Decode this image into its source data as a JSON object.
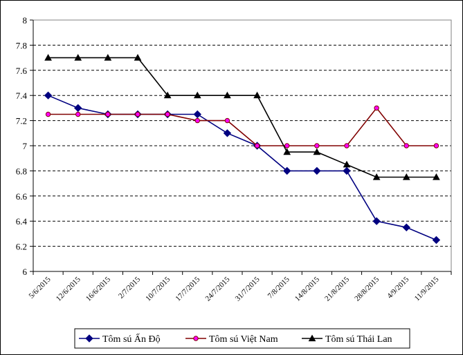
{
  "chart_data": {
    "type": "line",
    "title": "",
    "xlabel": "",
    "ylabel": "",
    "ylim": [
      6,
      8
    ],
    "yticks": [
      "6",
      "6.2",
      "6.4",
      "6.6",
      "6.8",
      "7",
      "7.2",
      "7.4",
      "7.6",
      "7.8",
      "8"
    ],
    "ytick_values": [
      6,
      6.2,
      6.4,
      6.6,
      6.8,
      7,
      7.2,
      7.4,
      7.6,
      7.8,
      8
    ],
    "grid": "horizontal-dashed",
    "legend_position": "bottom",
    "x": [
      "5/6/2015",
      "12/6/2015",
      "16/6/2015",
      "2/7/2015",
      "10/7/2015",
      "17/7/2015",
      "24/7/2015",
      "31/7/2015",
      "7/8/2015",
      "14/8/2015",
      "21/8/2015",
      "28/8/2015",
      "4/9/2015",
      "11/9/2015"
    ],
    "series": [
      {
        "name": "Tôm sú Ấn Độ",
        "color": "#000080",
        "marker": "diamond",
        "marker_fill": "#000080",
        "values": [
          7.4,
          7.3,
          7.25,
          7.25,
          7.25,
          7.25,
          7.1,
          7.0,
          6.8,
          6.8,
          6.8,
          6.4,
          6.35,
          6.25
        ]
      },
      {
        "name": "Tôm sú Việt Nam",
        "color": "#800000",
        "marker": "circle",
        "marker_fill": "#ff00ff",
        "values": [
          7.25,
          7.25,
          7.25,
          7.25,
          7.25,
          7.2,
          7.2,
          7.0,
          7.0,
          7.0,
          7.0,
          7.3,
          7.0,
          7.0
        ]
      },
      {
        "name": "Tôm sú Thái Lan",
        "color": "#000000",
        "marker": "triangle",
        "marker_fill": "#000000",
        "values": [
          7.7,
          7.7,
          7.7,
          7.7,
          7.4,
          7.4,
          7.4,
          7.4,
          6.95,
          6.95,
          6.85,
          6.75,
          6.75,
          6.75
        ]
      }
    ]
  }
}
